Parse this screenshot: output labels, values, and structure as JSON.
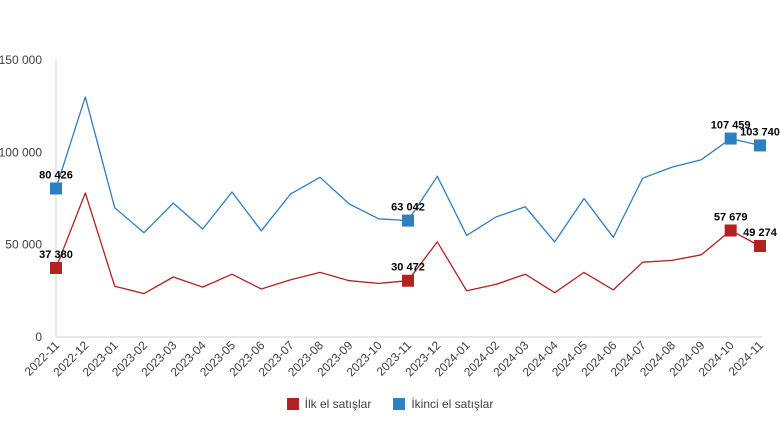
{
  "chart_data": {
    "type": "line",
    "title": "",
    "xlabel": "",
    "ylabel": "",
    "ylim": [
      0,
      150000
    ],
    "yticks": [
      0,
      50000,
      100000,
      150000
    ],
    "ytick_labels": [
      "0",
      "50 000",
      "100 000",
      "150 000"
    ],
    "grid": false,
    "legend_position": "bottom",
    "categories": [
      "2022-11",
      "2022-12",
      "2023-01",
      "2023-02",
      "2023-03",
      "2023-04",
      "2023-05",
      "2023-06",
      "2023-07",
      "2023-08",
      "2023-09",
      "2023-10",
      "2023-11",
      "2023-12",
      "2024-01",
      "2024-02",
      "2024-03",
      "2024-04",
      "2024-05",
      "2024-06",
      "2024-07",
      "2024-08",
      "2024-09",
      "2024-10",
      "2024-11"
    ],
    "series": [
      {
        "name": "İlk el satışlar",
        "color": "#b22222",
        "values": [
          37380,
          78000,
          27500,
          23500,
          32500,
          27000,
          34000,
          26000,
          31000,
          35000,
          30500,
          29000,
          30472,
          51500,
          25000,
          28500,
          34000,
          24000,
          35000,
          25500,
          40500,
          41500,
          44500,
          57679,
          49274
        ],
        "labeled_points": [
          {
            "index": 0,
            "label": "37 380"
          },
          {
            "index": 12,
            "label": "30 472"
          },
          {
            "index": 23,
            "label": "57 679"
          },
          {
            "index": 24,
            "label": "49 274"
          }
        ]
      },
      {
        "name": "İkinci el satışlar",
        "color": "#2e7fc2",
        "values": [
          80426,
          130000,
          70000,
          56500,
          72500,
          58500,
          78500,
          57500,
          77500,
          86500,
          72000,
          64000,
          63042,
          87000,
          55000,
          65000,
          70500,
          51500,
          75000,
          54000,
          86000,
          92000,
          96000,
          107459,
          103740
        ],
        "labeled_points": [
          {
            "index": 0,
            "label": "80 426"
          },
          {
            "index": 12,
            "label": "63 042"
          },
          {
            "index": 23,
            "label": "107 459"
          },
          {
            "index": 24,
            "label": "103 740"
          }
        ]
      }
    ]
  }
}
